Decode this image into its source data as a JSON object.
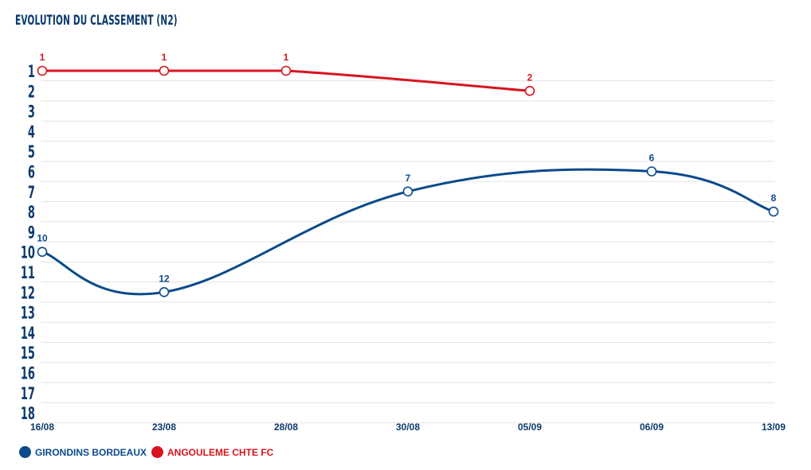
{
  "chart_data": {
    "type": "line",
    "title": "EVOLUTION DU CLASSEMENT (N2)",
    "categories": [
      "16/08",
      "23/08",
      "28/08",
      "30/08",
      "05/09",
      "06/09",
      "13/09"
    ],
    "y_ticks": [
      "1",
      "2",
      "3",
      "4",
      "5",
      "6",
      "7",
      "8",
      "9",
      "10",
      "11",
      "12",
      "13",
      "14",
      "15",
      "16",
      "17",
      "18"
    ],
    "ylim": [
      1,
      18
    ],
    "y_inverted": true,
    "grid": true,
    "legend_position": "bottom-left",
    "series": [
      {
        "name": "GIRONDINS BORDEAUX",
        "color": "#0b4a8b",
        "points": [
          {
            "x": "16/08",
            "y": 10
          },
          {
            "x": "23/08",
            "y": 12
          },
          {
            "x": "30/08",
            "y": 7
          },
          {
            "x": "06/09",
            "y": 6
          },
          {
            "x": "13/09",
            "y": 8
          }
        ]
      },
      {
        "name": "ANGOULEME CHTE FC",
        "color": "#d8141e",
        "points": [
          {
            "x": "16/08",
            "y": 1
          },
          {
            "x": "23/08",
            "y": 1
          },
          {
            "x": "28/08",
            "y": 1
          },
          {
            "x": "05/09",
            "y": 2
          }
        ]
      }
    ]
  }
}
